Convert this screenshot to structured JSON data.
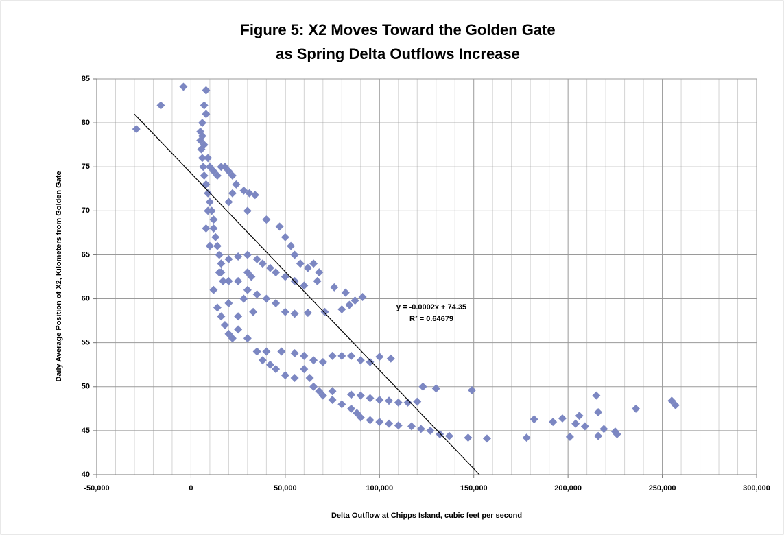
{
  "chart_data": {
    "type": "scatter",
    "title_lines": [
      "Figure 5:  X2 Moves Toward the Golden Gate",
      "as Spring Delta Outflows Increase"
    ],
    "x_label": "Delta Outflow at Chipps Island, cubic feet per second",
    "y_label": "Daily Average Position of X2, Kilometers from Golden Gate",
    "xlim": [
      -50000,
      300000
    ],
    "ylim": [
      40,
      85
    ],
    "xticks": [
      {
        "value": -50000,
        "label": "-50,000"
      },
      0,
      {
        "value": 50000,
        "label": "50,000"
      },
      {
        "value": 100000,
        "label": "100,000"
      },
      {
        "value": 150000,
        "label": "150,000"
      },
      {
        "value": 200000,
        "label": "200,000"
      },
      {
        "value": 250000,
        "label": "250,000"
      },
      {
        "value": 300000,
        "label": "300,000"
      }
    ],
    "xminor": [
      -40000,
      -30000,
      -20000,
      -10000,
      10000,
      20000,
      30000,
      40000,
      60000,
      70000,
      80000,
      90000,
      110000,
      120000,
      130000,
      140000,
      160000,
      170000,
      180000,
      190000,
      210000,
      220000,
      230000,
      240000,
      260000,
      270000,
      280000,
      290000
    ],
    "yticks": [
      40,
      45,
      50,
      55,
      60,
      65,
      70,
      75,
      80,
      85
    ],
    "grid": true,
    "color": "#7c87c2",
    "x": [
      -29000,
      -16000,
      -4000,
      8000,
      7000,
      8000,
      6000,
      5000,
      5000,
      5500,
      6000,
      6500,
      7000,
      8000,
      9000,
      10000,
      11000,
      12000,
      12000,
      13000,
      14000,
      15000,
      16000,
      16000,
      17000,
      6000,
      7000,
      9000,
      10000,
      12000,
      14000,
      16000,
      18000,
      20000,
      22000,
      24000,
      22000,
      20000,
      28000,
      31000,
      34000,
      30000,
      40000,
      47000,
      50000,
      53000,
      55000,
      58000,
      62000,
      65000,
      68000,
      67000,
      60000,
      55000,
      50000,
      45000,
      42000,
      38000,
      35000,
      30000,
      25000,
      20000,
      20000,
      25000,
      30000,
      35000,
      40000,
      45000,
      50000,
      55000,
      62000,
      71000,
      80000,
      84000,
      87000,
      91000,
      82000,
      76000,
      12000,
      14000,
      16000,
      18000,
      20000,
      22000,
      25000,
      30000,
      35000,
      38000,
      42000,
      45000,
      50000,
      55000,
      40000,
      48000,
      55000,
      60000,
      65000,
      70000,
      75000,
      80000,
      85000,
      90000,
      95000,
      100000,
      106000,
      60000,
      63000,
      65000,
      68000,
      70000,
      75000,
      80000,
      85000,
      88000,
      90000,
      95000,
      100000,
      105000,
      110000,
      117000,
      122000,
      127000,
      132000,
      137000,
      147000,
      157000,
      178000,
      201000,
      75000,
      85000,
      90000,
      95000,
      100000,
      105000,
      110000,
      115000,
      120000,
      123000,
      130000,
      149000,
      182000,
      192000,
      197000,
      204000,
      206000,
      209000,
      215000,
      216000,
      216000,
      219000,
      225000,
      226000,
      236000,
      255000,
      257000,
      28000,
      33000,
      25000,
      20000,
      15000,
      10000,
      8000,
      9000,
      30000,
      32000
    ],
    "y": [
      79.3,
      82,
      84.1,
      83.7,
      82,
      81,
      80,
      79,
      78,
      77,
      76,
      75,
      74,
      73,
      72,
      71,
      70,
      69,
      68,
      67,
      66,
      65,
      64,
      63,
      62,
      78.5,
      77.5,
      76,
      75,
      74.5,
      74,
      75,
      75,
      74.5,
      74,
      73,
      72,
      71,
      72.3,
      72,
      71.8,
      70,
      69,
      68.2,
      67,
      66,
      65,
      64,
      63.5,
      64,
      63,
      62,
      61.5,
      62,
      62.5,
      63,
      63.5,
      64,
      64.5,
      65,
      64.8,
      64.5,
      62,
      62,
      61,
      60.5,
      60,
      59.5,
      58.5,
      58.3,
      58.4,
      58.5,
      58.8,
      59.3,
      59.8,
      60.2,
      60.7,
      61.3,
      61,
      59,
      58,
      57,
      56,
      55.5,
      56.5,
      55.5,
      54,
      53,
      52.5,
      52,
      51.3,
      51,
      54,
      54,
      53.8,
      53.5,
      53,
      52.8,
      53.5,
      53.5,
      53.5,
      53,
      52.8,
      53.4,
      53.2,
      52,
      51,
      50,
      49.5,
      49,
      48.5,
      48,
      47.5,
      47,
      46.5,
      46.2,
      46,
      45.8,
      45.6,
      45.5,
      45.2,
      45,
      44.6,
      44.4,
      44.2,
      44.1,
      44.2,
      44.3,
      49.5,
      49.1,
      49,
      48.7,
      48.5,
      48.4,
      48.2,
      48.2,
      48.3,
      50,
      49.8,
      49.6,
      46.3,
      46,
      46.4,
      45.8,
      46.7,
      45.5,
      49,
      47.1,
      44.4,
      45.2,
      44.9,
      44.6,
      47.5,
      48.4,
      47.9,
      60,
      58.5,
      58,
      59.5,
      63,
      66,
      68,
      70,
      63,
      62.5
    ],
    "trendline": {
      "x": [
        -30000,
        153000
      ],
      "y": [
        81,
        40
      ],
      "equation": "y = -0.0002x + 74.35",
      "r2": "R² = 0.64679"
    }
  }
}
